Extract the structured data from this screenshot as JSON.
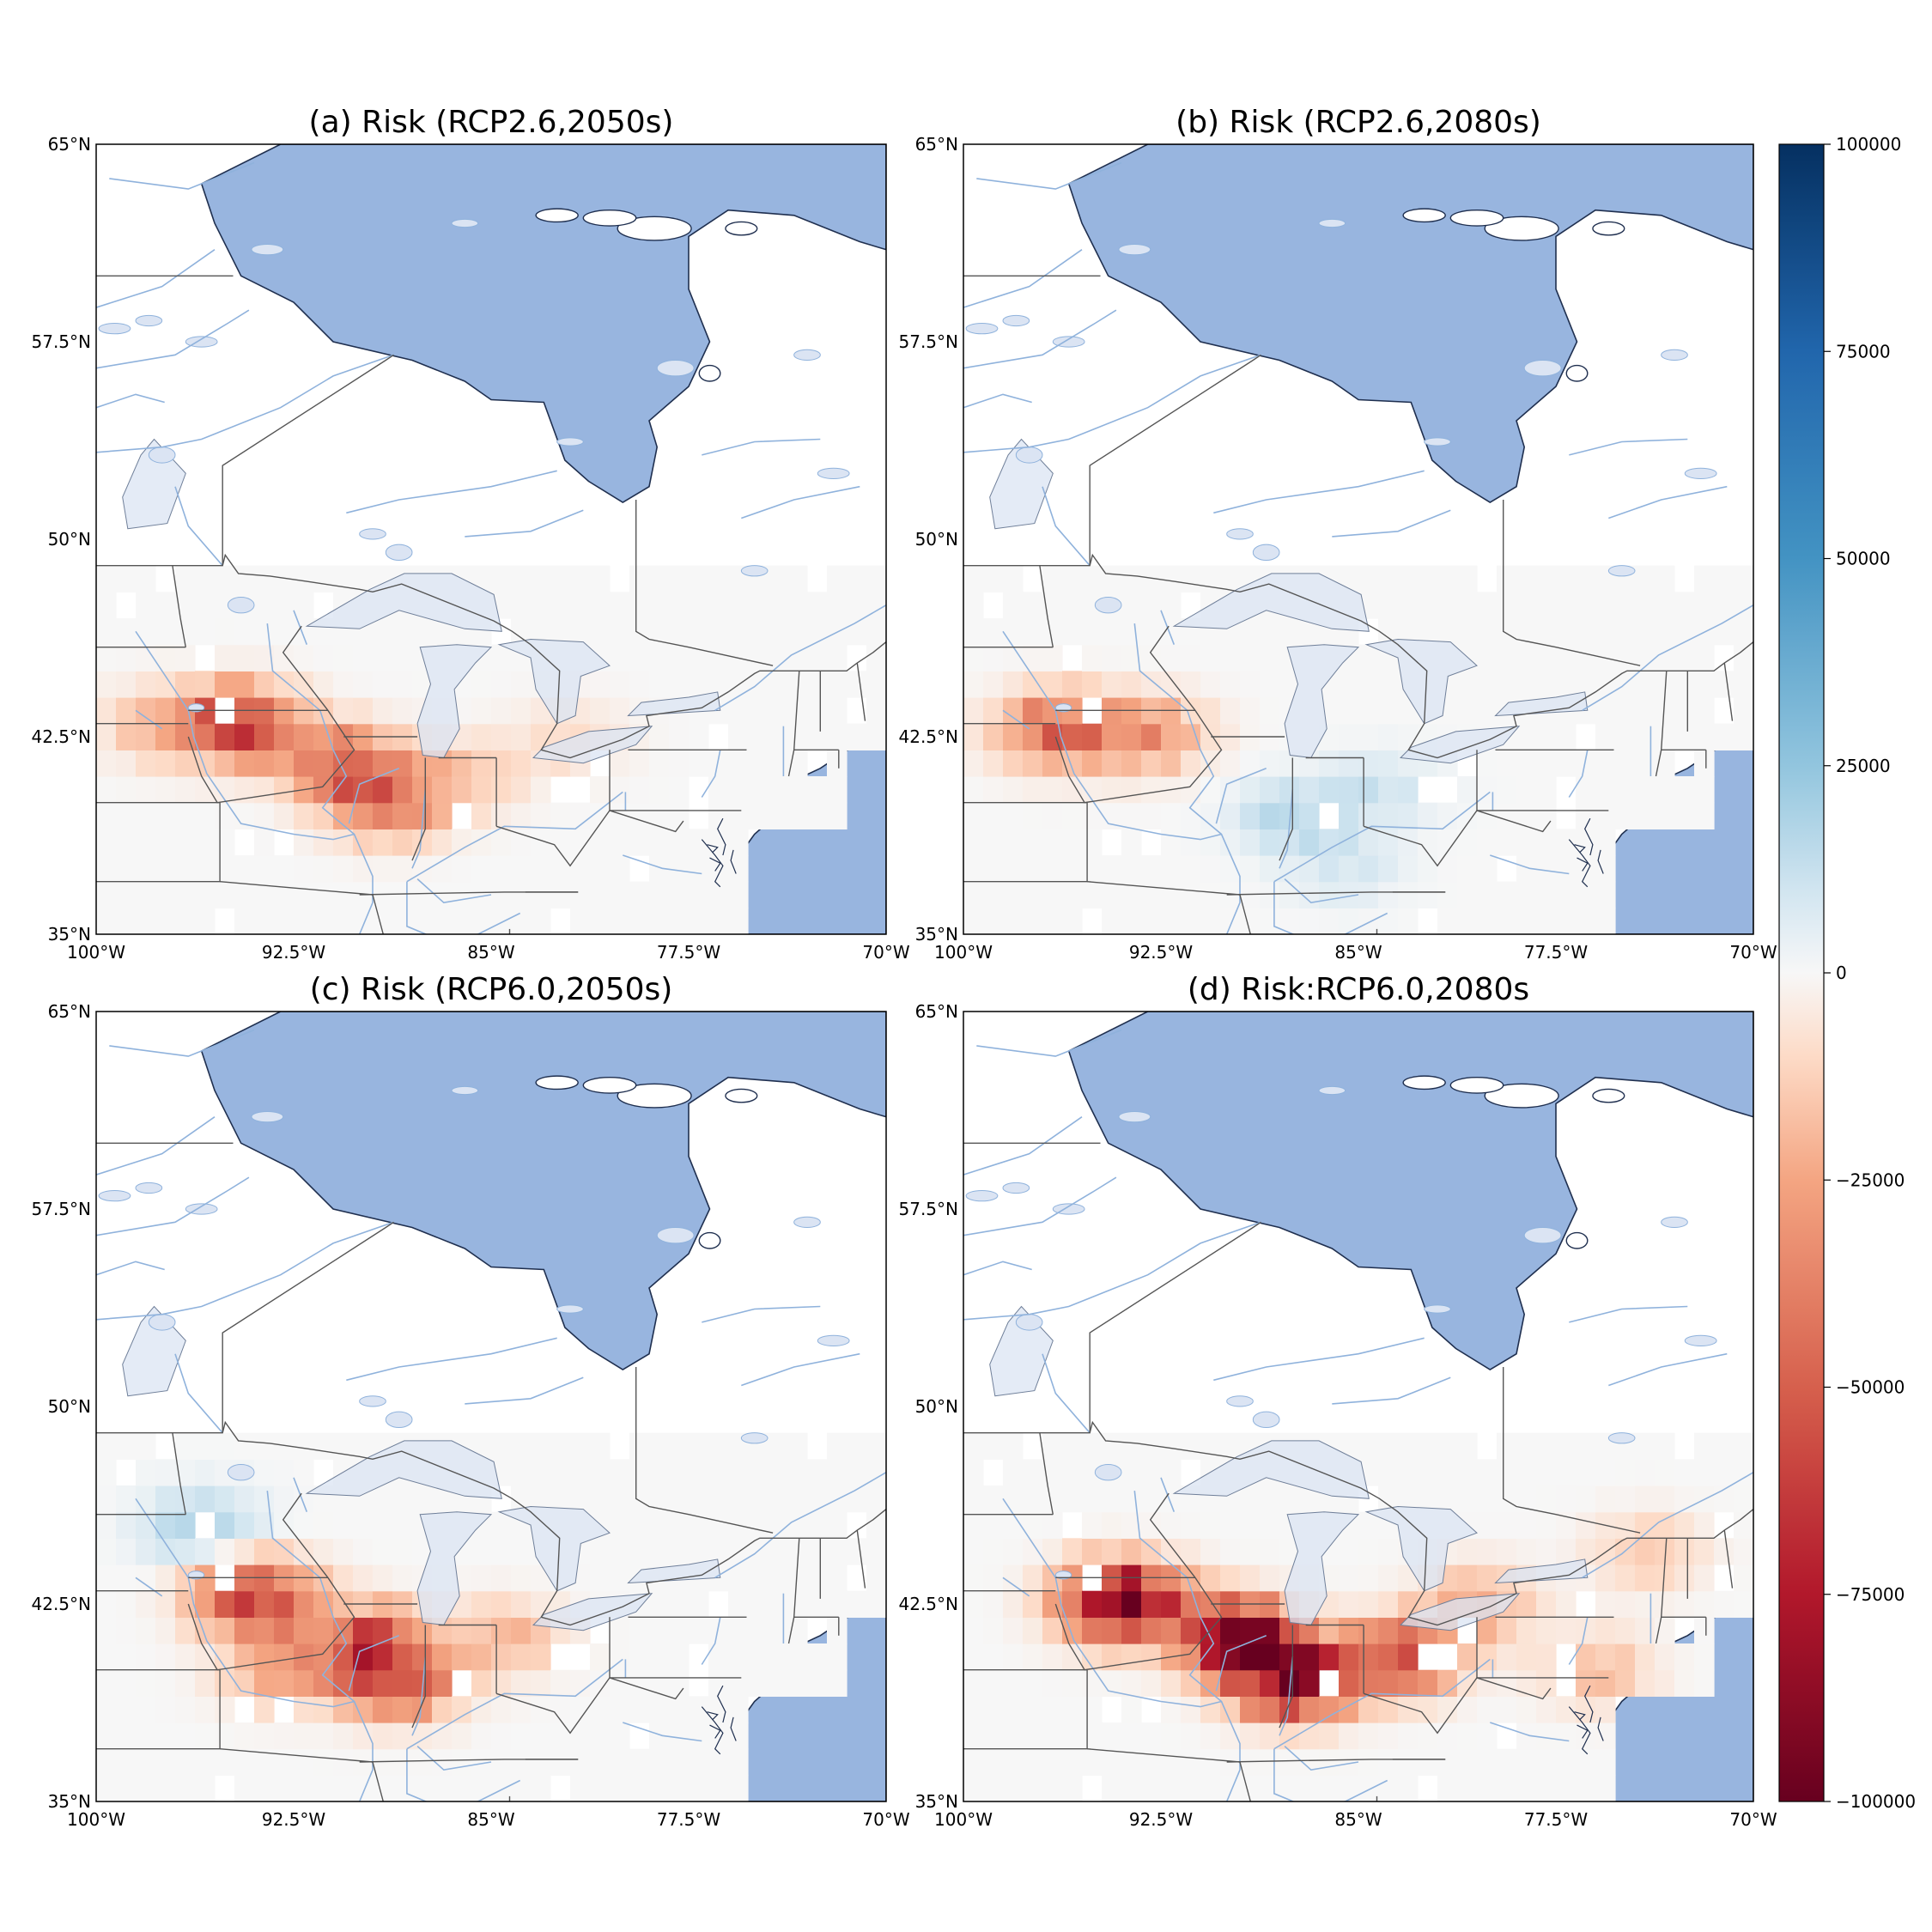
{
  "panels": [
    {
      "id": "a",
      "title": "(a) Risk (RCP2.6,2050s)"
    },
    {
      "id": "b",
      "title": "(b) Risk (RCP2.6,2080s)"
    },
    {
      "id": "c",
      "title": "(c) Risk (RCP6.0,2050s)"
    },
    {
      "id": "d",
      "title": "(d) Risk:RCP6.0,2080s"
    }
  ],
  "axes": {
    "lon_ticks": [
      "100°W",
      "92.5°W",
      "85°W",
      "77.5°W",
      "70°W"
    ],
    "lat_ticks": [
      "65°N",
      "57.5°N",
      "50°N",
      "42.5°N",
      "35°N"
    ]
  },
  "colorbar": {
    "ticks": [
      "100000",
      "75000",
      "50000",
      "25000",
      "0",
      "−25000",
      "−50000",
      "−75000",
      "−100000"
    ],
    "colormap": "RdBu"
  },
  "colors": {
    "water": "#98b5df",
    "land": "#ffffff",
    "river": "#8fb2dc",
    "border": "#555555",
    "coast": "#1f2f4f",
    "lake_pale": "#dbe4f3"
  },
  "hotspots": {
    "a": [
      {
        "lon": -94.5,
        "lat": 43.0,
        "value": -60000
      },
      {
        "lon": -90.5,
        "lat": 41.5,
        "value": -45000
      },
      {
        "lon": -89.0,
        "lat": 40.0,
        "value": -38000
      },
      {
        "lon": -86.0,
        "lat": 41.0,
        "value": -15000
      },
      {
        "lon": -82.0,
        "lat": 42.5,
        "value": -10000
      },
      {
        "lon": -97.5,
        "lat": 43.0,
        "value": -20000
      }
    ],
    "b": [
      {
        "lon": -96.5,
        "lat": 42.8,
        "value": -45000
      },
      {
        "lon": -93.0,
        "lat": 42.6,
        "value": -30000
      },
      {
        "lon": -87.5,
        "lat": 39.5,
        "value": 15000
      },
      {
        "lon": -84.0,
        "lat": 40.5,
        "value": 10000
      },
      {
        "lon": -85.5,
        "lat": 37.5,
        "value": 8000
      }
    ],
    "c": [
      {
        "lon": -94.0,
        "lat": 42.8,
        "value": -65000
      },
      {
        "lon": -89.5,
        "lat": 41.0,
        "value": -55000
      },
      {
        "lon": -88.5,
        "lat": 39.5,
        "value": -45000
      },
      {
        "lon": -84.5,
        "lat": 41.2,
        "value": -20000
      },
      {
        "lon": -96.0,
        "lat": 45.5,
        "value": 20000
      },
      {
        "lon": -93.0,
        "lat": 40.0,
        "value": -25000
      }
    ],
    "d": [
      {
        "lon": -94.0,
        "lat": 42.6,
        "value": -100000
      },
      {
        "lon": -89.5,
        "lat": 41.2,
        "value": -90000
      },
      {
        "lon": -87.5,
        "lat": 39.6,
        "value": -85000
      },
      {
        "lon": -83.5,
        "lat": 40.5,
        "value": -55000
      },
      {
        "lon": -80.5,
        "lat": 42.5,
        "value": -25000
      },
      {
        "lon": -76.0,
        "lat": 40.0,
        "value": -18000
      },
      {
        "lon": -74.0,
        "lat": 44.5,
        "value": -15000
      }
    ]
  }
}
